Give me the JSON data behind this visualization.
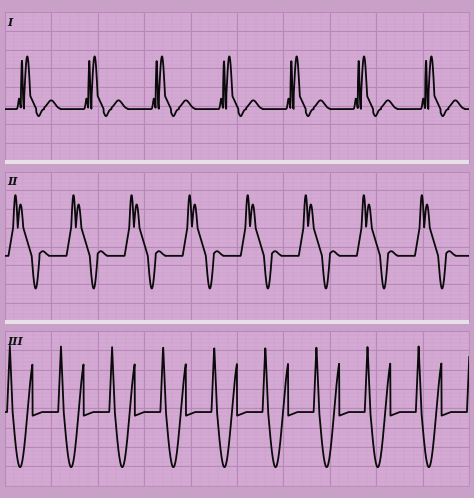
{
  "fig_width": 4.74,
  "fig_height": 4.98,
  "dpi": 100,
  "bg_color": "#c8a0c8",
  "strip_bg_color": "#d4aad4",
  "minor_grid_color": "#c8a0c8",
  "major_grid_color": "#b888b8",
  "ecg_color": "#0a0a0a",
  "ecg_linewidth": 1.3,
  "sep_color": "#e8e0e8",
  "labels": [
    "I",
    "II",
    "III"
  ],
  "label_fontsize": 8,
  "ylim1": [
    -0.6,
    1.1
  ],
  "ylim2": [
    -0.7,
    0.9
  ],
  "ylim3": [
    -1.0,
    1.1
  ]
}
